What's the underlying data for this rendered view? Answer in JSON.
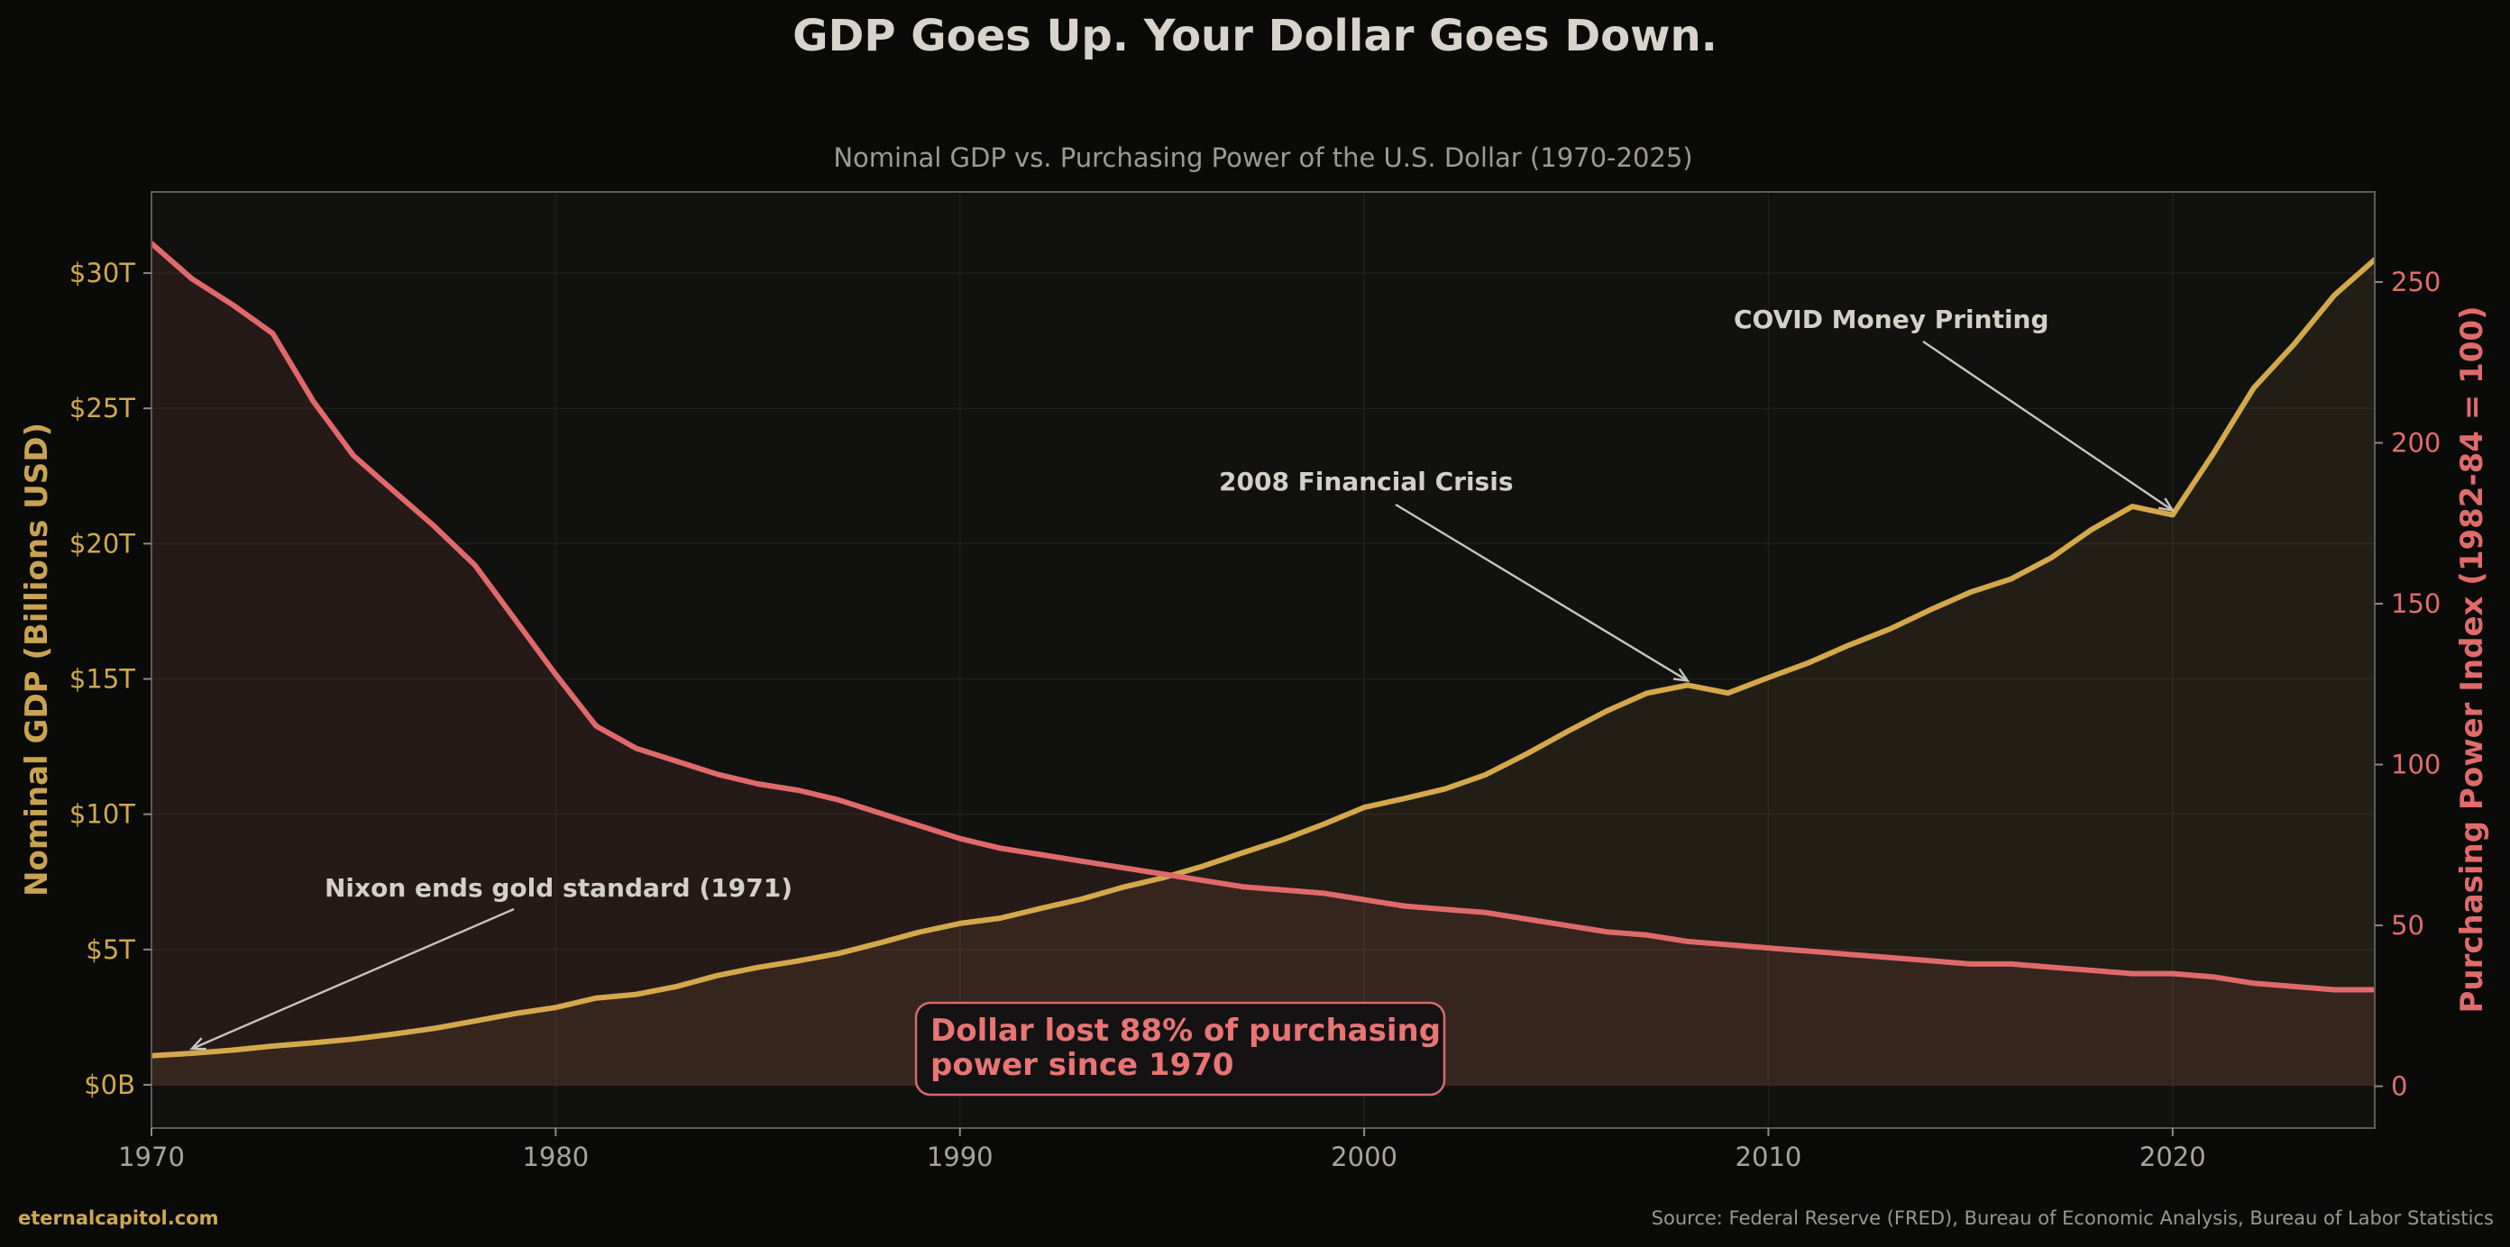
{
  "chart_data": {
    "type": "line",
    "title": "GDP Goes Up. Your Dollar Goes Down.",
    "subtitle": "Nominal GDP vs. Purchasing Power of the U.S. Dollar (1970-2025)",
    "x_ticks": [
      "1970",
      "1980",
      "1990",
      "2000",
      "2010",
      "2020"
    ],
    "xlim": [
      1970,
      2025
    ],
    "x": [
      1970,
      1971,
      1972,
      1973,
      1974,
      1975,
      1976,
      1977,
      1978,
      1979,
      1980,
      1981,
      1982,
      1983,
      1984,
      1985,
      1986,
      1987,
      1988,
      1989,
      1990,
      1991,
      1992,
      1993,
      1994,
      1995,
      1996,
      1997,
      1998,
      1999,
      2000,
      2001,
      2002,
      2003,
      2004,
      2005,
      2006,
      2007,
      2008,
      2009,
      2010,
      2011,
      2012,
      2013,
      2014,
      2015,
      2016,
      2017,
      2018,
      2019,
      2020,
      2021,
      2022,
      2023,
      2024,
      2025
    ],
    "left_axis": {
      "label": "Nominal GDP (Billions USD)",
      "tick_labels": [
        "$0B",
        "$5T",
        "$10T",
        "$15T",
        "$20T",
        "$25T",
        "$30T"
      ],
      "tick_values": [
        0,
        5000,
        10000,
        15000,
        20000,
        25000,
        30000
      ],
      "ylim": [
        -1600,
        33000
      ],
      "color": "#d4a84b"
    },
    "right_axis": {
      "label": "Purchasing Power Index (1982-84 = 100)",
      "tick_labels": [
        "0",
        "50",
        "100",
        "150",
        "200",
        "250"
      ],
      "tick_values": [
        0,
        50,
        100,
        150,
        200,
        250
      ],
      "ylim": [
        -13,
        278
      ],
      "color": "#e0696a"
    },
    "series": [
      {
        "axis": "left",
        "color": "#d4a84b",
        "values": [
          1073,
          1165,
          1282,
          1429,
          1549,
          1689,
          1877,
          2086,
          2357,
          2632,
          2857,
          3207,
          3343,
          3634,
          4037,
          4339,
          4580,
          4855,
          5236,
          5642,
          5963,
          6158,
          6520,
          6859,
          7287,
          7640,
          8073,
          8578,
          9063,
          9631,
          10251,
          10582,
          10936,
          11458,
          12214,
          13037,
          13815,
          14474,
          14770,
          14478,
          15049,
          15600,
          16254,
          16843,
          17551,
          18206,
          18695,
          19480,
          20527,
          21373,
          21060,
          23315,
          25744,
          27361,
          29184,
          30500
        ]
      },
      {
        "axis": "right",
        "color": "#e0696a",
        "values": [
          262,
          251,
          243,
          234,
          213,
          196,
          185,
          174,
          162,
          145,
          128,
          112,
          105,
          101,
          97,
          94,
          92,
          89,
          85,
          81,
          77,
          74,
          72,
          70,
          68,
          66,
          64,
          62,
          61,
          60,
          58,
          56,
          55,
          54,
          52,
          50,
          48,
          47,
          45,
          44,
          43,
          42,
          41,
          40,
          39,
          38,
          38,
          37,
          36,
          35,
          35,
          34,
          32,
          31,
          30,
          30
        ]
      }
    ],
    "annotations": [
      {
        "text": "Nixon ends gold standard (1971)",
        "x": 1971,
        "axis": "left",
        "y": 1165
      },
      {
        "text": "2008 Financial Crisis",
        "x": 2008,
        "axis": "left",
        "y": 14770
      },
      {
        "text": "COVID Money Printing",
        "x": 2020,
        "axis": "left",
        "y": 21060
      }
    ],
    "callout": [
      "Dollar lost 88% of purchasing",
      "power since 1970"
    ],
    "grid": true,
    "source": "Source: Federal Reserve (FRED), Bureau of Economic Analysis, Bureau of Labor Statistics",
    "brand": "eternalcapitol.com"
  }
}
